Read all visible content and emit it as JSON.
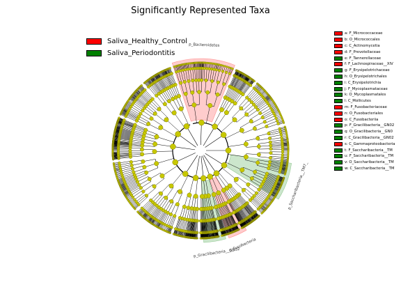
{
  "chart_data": {
    "type": "cladogram",
    "title": "Significantly Represented Taxa",
    "groups": [
      {
        "name": "Saliva_Healthy_Control",
        "color": "#ff0000"
      },
      {
        "name": "Saliva_Periodontitis",
        "color": "#008000"
      }
    ],
    "taxa": [
      {
        "label": "a: F_Micrococcaceae",
        "group": "Saliva_Healthy_Control"
      },
      {
        "label": "b: O_Micrococcales",
        "group": "Saliva_Healthy_Control"
      },
      {
        "label": "c: C_Actinomycetia",
        "group": "Saliva_Healthy_Control"
      },
      {
        "label": "d: F_Prevotellaceae",
        "group": "Saliva_Healthy_Control"
      },
      {
        "label": "e: F_Tannerellaceae",
        "group": "Saliva_Periodontitis"
      },
      {
        "label": "f: F_Lachnospiraceae__XIV",
        "group": "Saliva_Healthy_Control"
      },
      {
        "label": "g: F_Erysipelotrichaceae",
        "group": "Saliva_Periodontitis"
      },
      {
        "label": "h: O_Erysipelotrichales",
        "group": "Saliva_Periodontitis"
      },
      {
        "label": "i: C_Erysipelotrichia",
        "group": "Saliva_Periodontitis"
      },
      {
        "label": "j: F_Mycoplasmataceae",
        "group": "Saliva_Periodontitis"
      },
      {
        "label": "k: O_Mycoplasmatales",
        "group": "Saliva_Periodontitis"
      },
      {
        "label": "l: C_Mollicutes",
        "group": "Saliva_Periodontitis"
      },
      {
        "label": "m: F_Fusobacteriaceae",
        "group": "Saliva_Healthy_Control"
      },
      {
        "label": "n: O_Fusobacteriales",
        "group": "Saliva_Healthy_Control"
      },
      {
        "label": "o: C_Fusobacteriia",
        "group": "Saliva_Healthy_Control"
      },
      {
        "label": "p: F_Gracilibacteria__GN02",
        "group": "Saliva_Periodontitis"
      },
      {
        "label": "q: O_Gracilibacteria__GN0",
        "group": "Saliva_Periodontitis"
      },
      {
        "label": "r: C_Gracilibacteria__GN02",
        "group": "Saliva_Periodontitis"
      },
      {
        "label": "s: C_Gammaproteobacteria",
        "group": "Saliva_Healthy_Control"
      },
      {
        "label": "t: F_Saccharibacteria__TM",
        "group": "Saliva_Periodontitis"
      },
      {
        "label": "u: F_Saccharibacteria__TM",
        "group": "Saliva_Periodontitis"
      },
      {
        "label": "v: O_Saccharibacteria__TM",
        "group": "Saliva_Periodontitis"
      },
      {
        "label": "w: C_Saccharibacteria__TM",
        "group": "Saliva_Periodontitis"
      }
    ],
    "clade_sectors": [
      {
        "label": "p_Bacteroidetes",
        "group": "Saliva_Healthy_Control"
      },
      {
        "label": "p_Saccharibacteria__TM7_",
        "group": "Saliva_Periodontitis"
      },
      {
        "label": "p_Gracilibacteria__GN02",
        "group": "Saliva_Periodontitis"
      },
      {
        "label": "p_Fusobacteria",
        "group": "Saliva_Healthy_Control"
      }
    ]
  }
}
